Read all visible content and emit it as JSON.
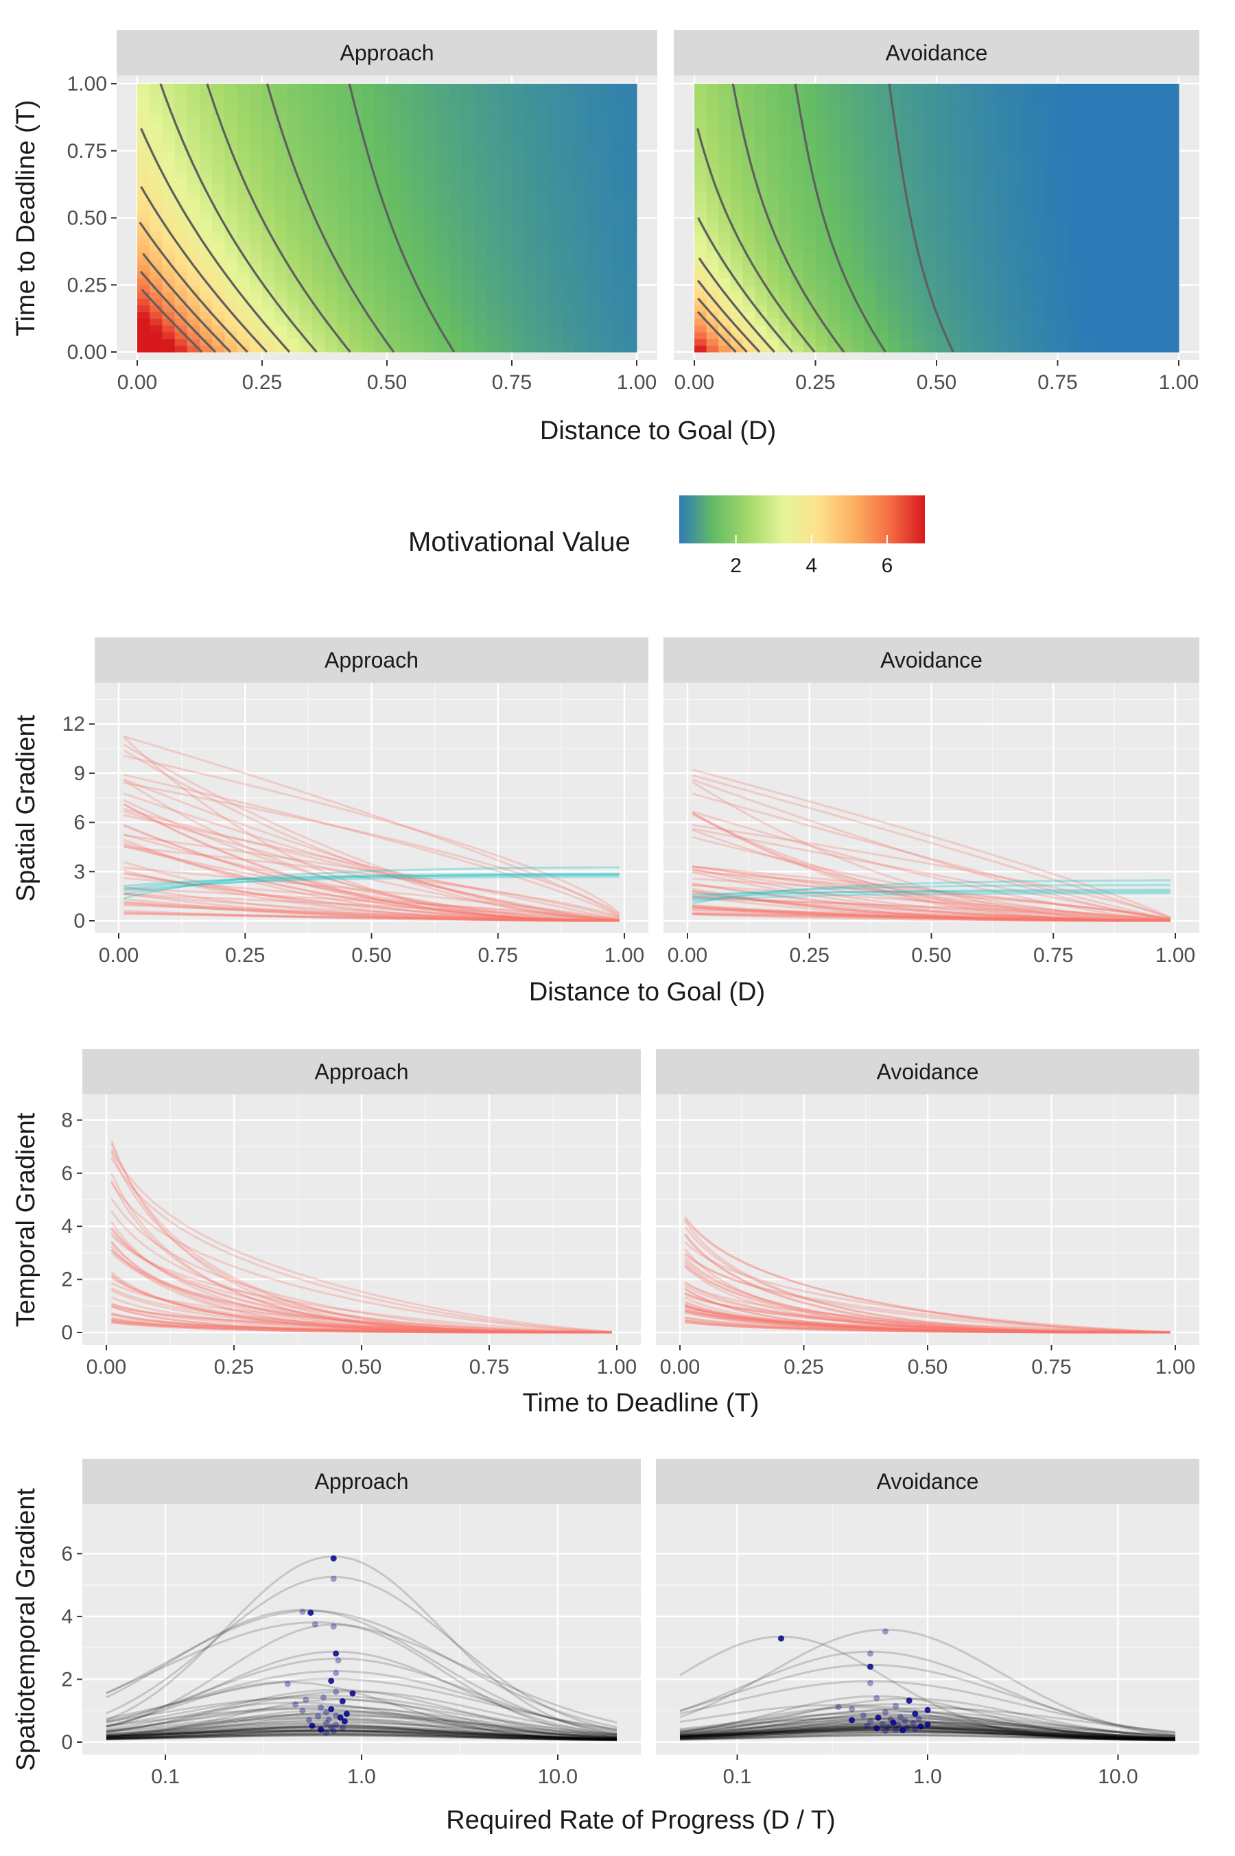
{
  "rows": [
    {
      "id": "motivational-value",
      "ylabel": "Time to Deadline (T)",
      "xlabel": "Distance to Goal (D)",
      "panels": [
        "Approach",
        "Avoidance"
      ],
      "xticks": [
        "0.00",
        "0.25",
        "0.50",
        "0.75",
        "1.00"
      ],
      "yticks": [
        "0.00",
        "0.25",
        "0.50",
        "0.75",
        "1.00"
      ]
    },
    {
      "id": "spatial-gradient",
      "ylabel": "Spatial Gradient",
      "xlabel": "Distance to Goal (D)",
      "panels": [
        "Approach",
        "Avoidance"
      ],
      "xticks": [
        "0.00",
        "0.25",
        "0.50",
        "0.75",
        "1.00"
      ],
      "yticks": [
        "0",
        "3",
        "6",
        "9",
        "12"
      ]
    },
    {
      "id": "temporal-gradient",
      "ylabel": "Temporal Gradient",
      "xlabel": "Time to Deadline (T)",
      "panels": [
        "Approach",
        "Avoidance"
      ],
      "xticks": [
        "0.00",
        "0.25",
        "0.50",
        "0.75",
        "1.00"
      ],
      "yticks": [
        "0",
        "2",
        "4",
        "6",
        "8"
      ]
    },
    {
      "id": "spatiotemporal-gradient",
      "ylabel": "Spatiotemporal Gradient",
      "xlabel": "Required Rate of Progress (D / T)",
      "panels": [
        "Approach",
        "Avoidance"
      ],
      "xticks": [
        "0.1",
        "1.0",
        "10.0"
      ],
      "yticks": [
        "0",
        "2",
        "4",
        "6"
      ]
    }
  ],
  "legend": {
    "title": "Motivational Value",
    "ticks": [
      "2",
      "4",
      "6"
    ],
    "colors": [
      "#2c7bb6",
      "#66bd63",
      "#a6d96a",
      "#e6f598",
      "#fee08b",
      "#fdae61",
      "#f46d43",
      "#d7191c"
    ]
  },
  "chart_data": [
    {
      "type": "heatmap",
      "facets": [
        "Approach",
        "Avoidance"
      ],
      "x": "Distance to Goal (D)",
      "y": "Time to Deadline (T)",
      "fill": "Motivational Value",
      "xlim": [
        0,
        1
      ],
      "ylim": [
        0,
        1
      ],
      "fill_range": [
        0.5,
        7
      ],
      "contours": true
    },
    {
      "type": "line",
      "facets": [
        "Approach",
        "Avoidance"
      ],
      "x": "Distance to Goal (D)",
      "y": "Spatial Gradient",
      "xlim": [
        0,
        1
      ],
      "ylim": [
        0,
        12
      ],
      "colors": {
        "decreasing": "#f8766d",
        "increasing": "#00bfc4"
      },
      "approx_max": {
        "Approach": 11.5,
        "Avoidance": 9.3
      }
    },
    {
      "type": "line",
      "facets": [
        "Approach",
        "Avoidance"
      ],
      "x": "Time to Deadline (T)",
      "y": "Temporal Gradient",
      "xlim": [
        0,
        1
      ],
      "ylim": [
        0,
        8
      ],
      "colors": {
        "line": "#f8766d"
      },
      "approx_max": {
        "Approach": 7.8,
        "Avoidance": 4.6
      }
    },
    {
      "type": "line",
      "facets": [
        "Approach",
        "Avoidance"
      ],
      "x": "Required Rate of Progress (D / T)",
      "y": "Spatiotemporal Gradient",
      "xscale": "log",
      "xlim": [
        0.05,
        20
      ],
      "ylim": [
        0,
        6
      ],
      "colors": {
        "line": "#000000",
        "peak_point": "#00008b"
      },
      "peaks": {
        "Approach": [
          [
            0.72,
            5.85
          ],
          [
            0.72,
            5.2
          ],
          [
            0.5,
            4.15
          ],
          [
            0.55,
            4.12
          ],
          [
            0.58,
            3.75
          ],
          [
            0.72,
            3.68
          ],
          [
            0.74,
            2.82
          ],
          [
            0.76,
            2.6
          ],
          [
            0.74,
            2.2
          ],
          [
            0.7,
            1.95
          ],
          [
            0.42,
            1.85
          ],
          [
            0.74,
            1.6
          ],
          [
            0.9,
            1.55
          ],
          [
            0.64,
            1.42
          ],
          [
            0.52,
            1.35
          ],
          [
            0.8,
            1.3
          ],
          [
            0.46,
            1.2
          ],
          [
            0.62,
            1.1
          ],
          [
            0.7,
            1.05
          ],
          [
            0.5,
            1.0
          ],
          [
            0.66,
            0.95
          ],
          [
            0.84,
            0.9
          ],
          [
            0.74,
            0.85
          ],
          [
            0.6,
            0.82
          ],
          [
            0.78,
            0.78
          ],
          [
            0.68,
            0.72
          ],
          [
            0.54,
            0.7
          ],
          [
            0.82,
            0.66
          ],
          [
            0.66,
            0.6
          ],
          [
            0.74,
            0.55
          ],
          [
            0.56,
            0.52
          ],
          [
            0.7,
            0.48
          ],
          [
            0.8,
            0.45
          ],
          [
            0.62,
            0.4
          ],
          [
            0.72,
            0.36
          ],
          [
            0.66,
            0.3
          ]
        ],
        "Avoidance": [
          [
            0.17,
            3.3
          ],
          [
            0.6,
            3.52
          ],
          [
            0.5,
            2.82
          ],
          [
            0.5,
            2.4
          ],
          [
            0.5,
            1.88
          ],
          [
            0.54,
            1.4
          ],
          [
            0.8,
            1.32
          ],
          [
            0.68,
            1.15
          ],
          [
            0.34,
            1.12
          ],
          [
            1.0,
            1.02
          ],
          [
            0.4,
            1.05
          ],
          [
            0.6,
            0.95
          ],
          [
            0.86,
            0.9
          ],
          [
            0.46,
            0.85
          ],
          [
            0.72,
            0.8
          ],
          [
            0.55,
            0.78
          ],
          [
            0.9,
            0.74
          ],
          [
            0.64,
            0.72
          ],
          [
            0.4,
            0.7
          ],
          [
            0.76,
            0.68
          ],
          [
            0.5,
            0.66
          ],
          [
            0.66,
            0.62
          ],
          [
            0.84,
            0.6
          ],
          [
            0.58,
            0.58
          ],
          [
            1.0,
            0.56
          ],
          [
            0.7,
            0.54
          ],
          [
            0.48,
            0.52
          ],
          [
            0.92,
            0.5
          ],
          [
            0.62,
            0.48
          ],
          [
            0.78,
            0.46
          ],
          [
            0.54,
            0.44
          ],
          [
            0.86,
            0.42
          ],
          [
            0.68,
            0.4
          ],
          [
            0.74,
            0.38
          ],
          [
            0.6,
            0.36
          ]
        ]
      }
    }
  ]
}
